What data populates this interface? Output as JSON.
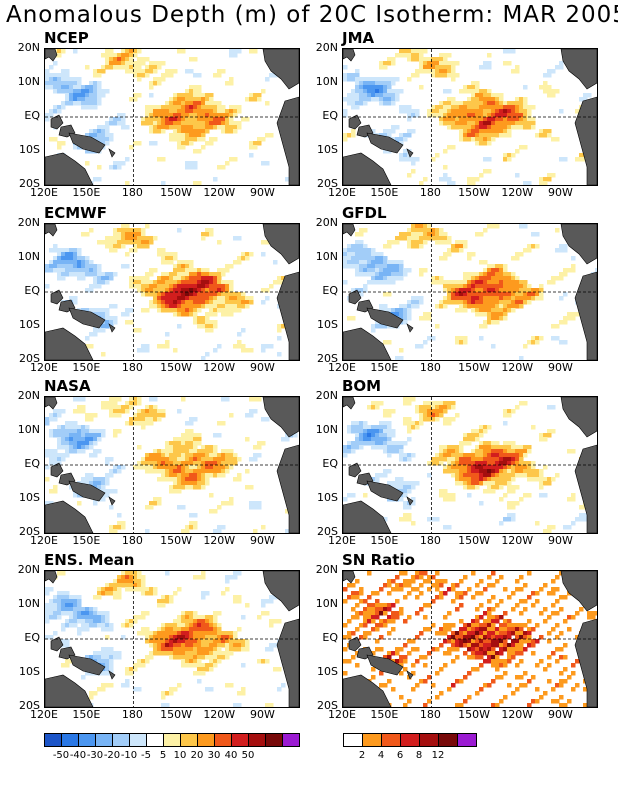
{
  "title": "Anomalous Depth (m) of 20C Isotherm: MAR 2005",
  "y_ticks": [
    "20N",
    "10N",
    "EQ",
    "10S",
    "20S"
  ],
  "x_ticks": [
    "120E",
    "150E",
    "180",
    "150W",
    "120W",
    "90W"
  ],
  "panels": [
    {
      "name": "NCEP",
      "kind": "anom",
      "hot": 0.75
    },
    {
      "name": "JMA",
      "kind": "anom",
      "hot": 0.85
    },
    {
      "name": "ECMWF",
      "kind": "anom",
      "hot": 1.0
    },
    {
      "name": "GFDL",
      "kind": "anom",
      "hot": 0.9
    },
    {
      "name": "NASA",
      "kind": "anom",
      "hot": 0.7
    },
    {
      "name": "BOM",
      "kind": "anom",
      "hot": 0.95
    },
    {
      "name": "ENS. Mean",
      "kind": "anom",
      "hot": 0.85
    },
    {
      "name": "SN Ratio",
      "kind": "ratio",
      "hot": 1.0
    }
  ],
  "anomaly_colorbar": {
    "colors": [
      "#1c55c8",
      "#2a78e6",
      "#4b96f0",
      "#78b4f5",
      "#a2cdf8",
      "#cde6fb",
      "#ffffff",
      "#fdf1a6",
      "#fdc74a",
      "#fd9a1e",
      "#f0581a",
      "#d21e1e",
      "#a50f0f",
      "#780a0a",
      "#9b1bd2"
    ],
    "labels": [
      "-50",
      "-40",
      "-30",
      "-20",
      "-10",
      "-5",
      "5",
      "10",
      "20",
      "30",
      "40",
      "50"
    ]
  },
  "ratio_colorbar": {
    "colors": [
      "#ffffff",
      "#fd9a1e",
      "#f0581a",
      "#d21e1e",
      "#a50f0f",
      "#780a0a",
      "#9b1bd2"
    ],
    "labels": [
      "2",
      "4",
      "6",
      "8",
      "12"
    ]
  },
  "land_color": "#595959"
}
